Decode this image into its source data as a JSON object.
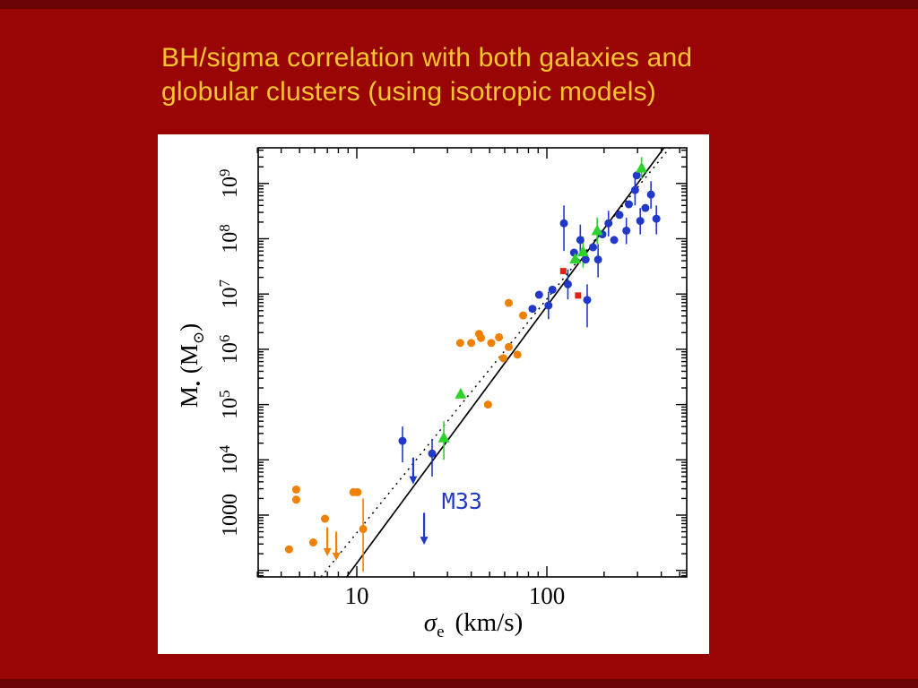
{
  "slide": {
    "title_lines": [
      "BH/sigma correlation with both galaxies and",
      "globular clusters (using isotropic models)"
    ],
    "background_color": "#990505",
    "edge_band_color": "#6B0404",
    "title_color": "#FFC52F",
    "figure_background": "#FFFFFF"
  },
  "chart_data": {
    "type": "scatter",
    "title": "",
    "x_axis": {
      "scale": "log",
      "min": 3.0,
      "max": 545,
      "ticks": [
        10,
        100
      ],
      "label_parts": [
        "σ",
        "e",
        "(km/s)"
      ]
    },
    "y_axis": {
      "scale": "log",
      "min": 76,
      "max": 4400000000,
      "label_parts": [
        "M",
        "•",
        "(M",
        "⊙",
        ")"
      ],
      "tick_labels": [
        {
          "decade": 3,
          "text": "1000"
        },
        {
          "decade": 4,
          "exp": "4"
        },
        {
          "decade": 5,
          "exp": "5"
        },
        {
          "decade": 6,
          "exp": "6"
        },
        {
          "decade": 7,
          "exp": "7"
        },
        {
          "decade": 8,
          "exp": "8"
        },
        {
          "decade": 9,
          "exp": "9"
        }
      ]
    },
    "fit_lines": [
      {
        "style": "solid",
        "slope": 4.65,
        "intercept": -2.52,
        "color": "#000000"
      },
      {
        "style": "dotted",
        "slope": 4.23,
        "intercept": -1.55,
        "color": "#000000"
      }
    ],
    "series": [
      {
        "name": "globular-clusters-orange",
        "marker": "circle",
        "color": "#F08000",
        "points": [
          [
            4.8,
            2900
          ],
          [
            4.8,
            1900
          ],
          [
            4.4,
            240
          ],
          [
            5.9,
            320
          ],
          [
            6.8,
            860
          ],
          [
            9.6,
            2600
          ],
          [
            10.1,
            2600
          ],
          [
            10.8,
            560,
            95,
            2000
          ],
          [
            35,
            1300000
          ],
          [
            40,
            1300000
          ],
          [
            44,
            1900000
          ],
          [
            45,
            1600000
          ],
          [
            49,
            100000
          ],
          [
            51,
            1300000
          ],
          [
            56,
            1650000
          ],
          [
            59,
            690000
          ],
          [
            63,
            1100000
          ],
          [
            70,
            800000
          ],
          [
            63,
            6900000
          ],
          [
            75,
            4100000
          ]
        ]
      },
      {
        "name": "galaxies-blue",
        "marker": "circle",
        "color": "#2238C8",
        "points": [
          [
            17.4,
            22000,
            9000,
            40000
          ],
          [
            24.9,
            13000,
            5000,
            24000
          ],
          [
            84,
            5400000
          ],
          [
            91,
            9700000
          ],
          [
            102,
            6200000,
            3500000,
            11000000
          ],
          [
            107,
            12000000
          ],
          [
            123,
            190000000,
            60000000,
            400000000
          ],
          [
            129,
            15000000,
            8000000,
            28000000
          ],
          [
            139,
            56000000
          ],
          [
            150,
            95000000,
            50000000,
            180000000
          ],
          [
            160,
            42000000
          ],
          [
            163,
            7800000,
            2500000,
            15000000
          ],
          [
            175,
            70000000
          ],
          [
            186,
            42000000,
            20000000,
            80000000
          ],
          [
            196,
            120000000
          ],
          [
            211,
            190000000,
            110000000,
            320000000
          ],
          [
            226,
            95000000
          ],
          [
            241,
            270000000
          ],
          [
            262,
            140000000,
            80000000,
            240000000
          ],
          [
            270,
            420000000
          ],
          [
            291,
            760000000,
            400000000,
            1300000000
          ],
          [
            297,
            1400000000
          ],
          [
            310,
            210000000,
            120000000,
            360000000
          ],
          [
            330,
            360000000
          ],
          [
            353,
            630000000,
            350000000,
            1100000000
          ],
          [
            377,
            230000000,
            120000000,
            400000000
          ]
        ]
      },
      {
        "name": "triangles-green",
        "marker": "triangle",
        "color": "#2BD32B",
        "points": [
          [
            28.7,
            25000,
            10000,
            50000
          ],
          [
            35.2,
            155000
          ],
          [
            141,
            43000000
          ],
          [
            155,
            58000000,
            30000000,
            110000000
          ],
          [
            184,
            140000000,
            80000000,
            240000000
          ],
          [
            315,
            1900000000,
            1200000000,
            3000000000
          ]
        ]
      },
      {
        "name": "squares-red",
        "marker": "square",
        "color": "#E02414",
        "points": [
          [
            122,
            26000000
          ],
          [
            146,
            9400000
          ]
        ]
      }
    ],
    "upper_limits": [
      {
        "x": 22.6,
        "from": 1100,
        "to": 290,
        "color": "#2238C8"
      },
      {
        "x": 19.8,
        "from": 11000,
        "to": 3600,
        "color": "#2238C8"
      },
      {
        "x": 7.0,
        "from": 600,
        "to": 180,
        "color": "#F08000"
      },
      {
        "x": 7.8,
        "from": 500,
        "to": 150,
        "color": "#F08000"
      }
    ],
    "annotations": [
      {
        "text": "M33",
        "x": 28,
        "y": 1300,
        "color": "#2238C8"
      }
    ]
  }
}
